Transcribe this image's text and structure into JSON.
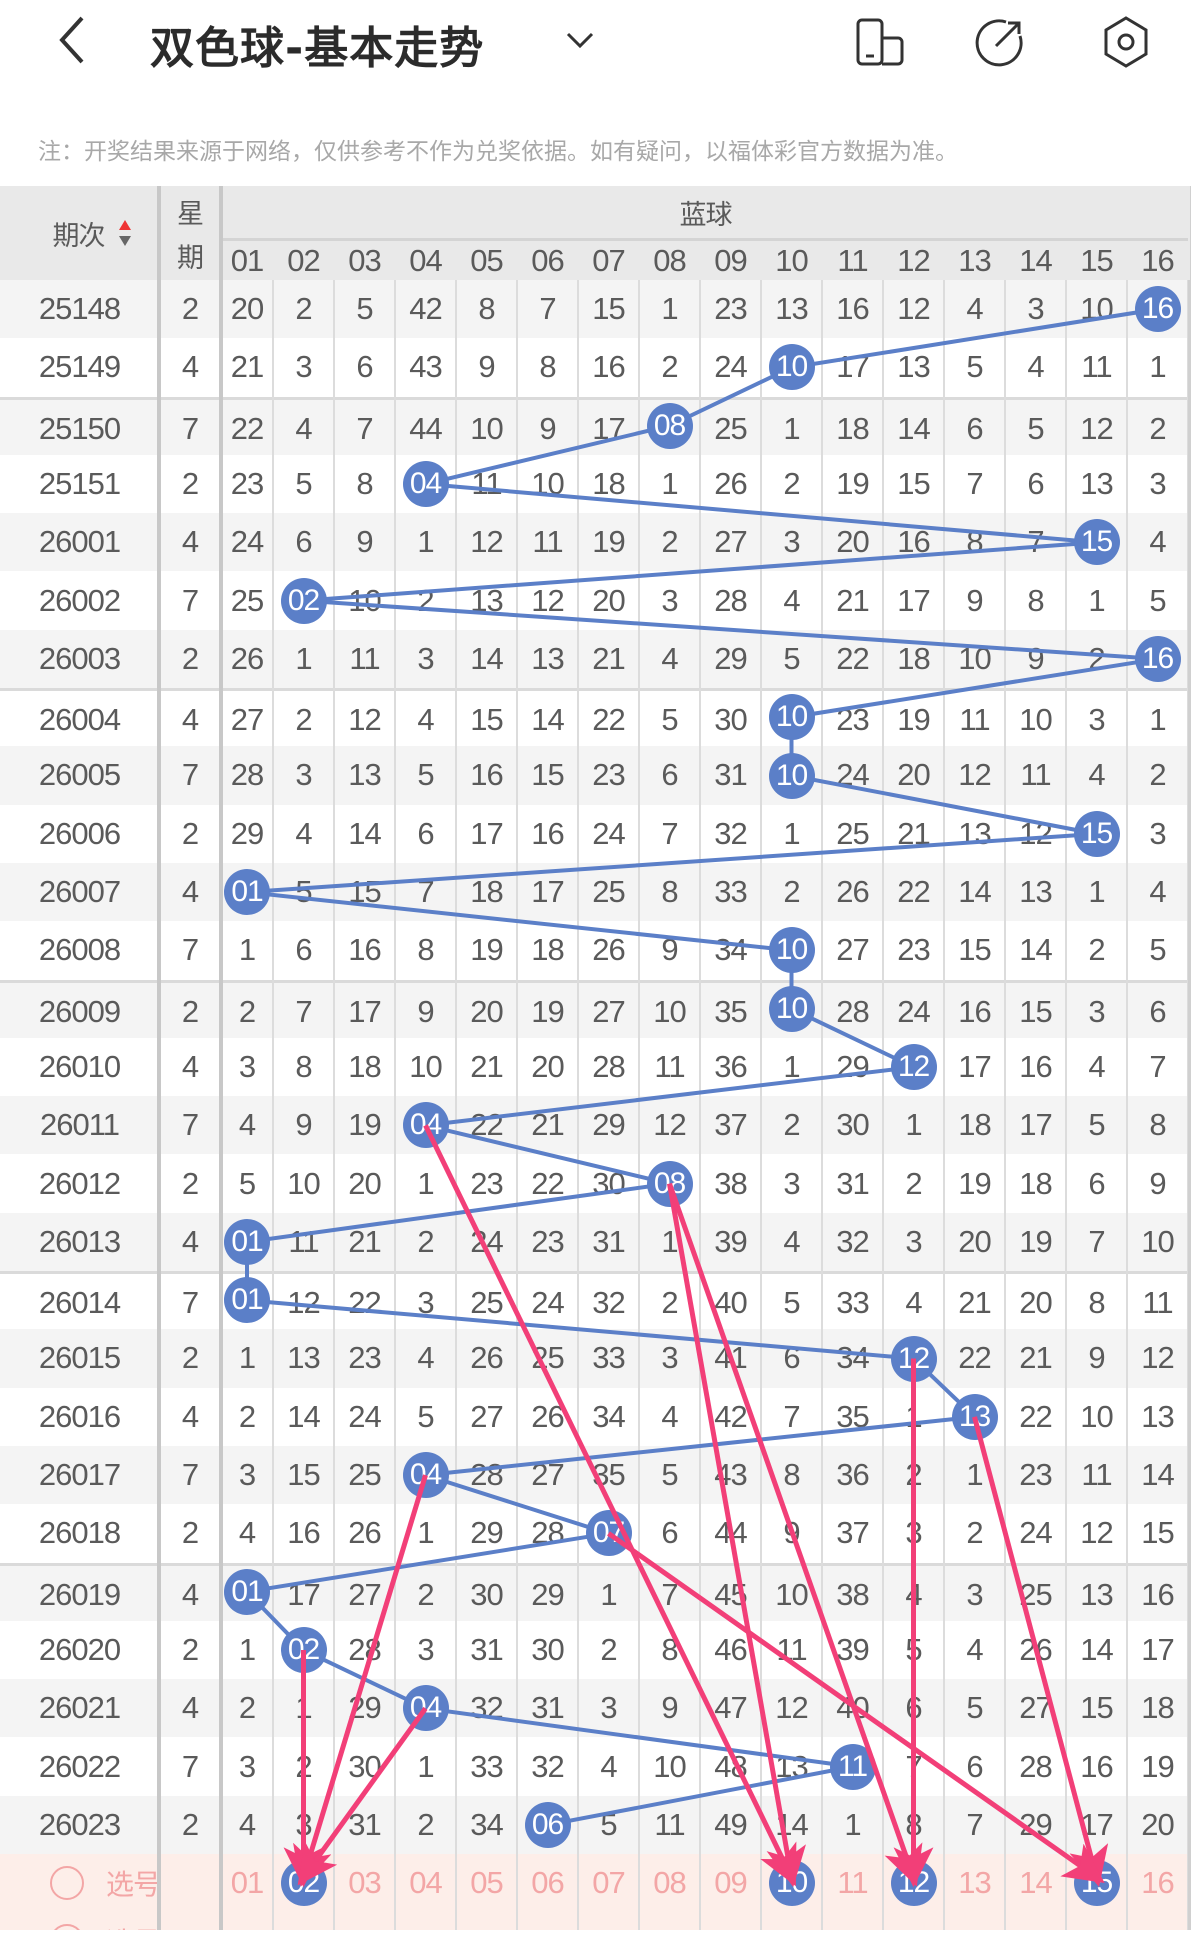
{
  "header": {
    "title": "双色球-基本走势",
    "icons": [
      "back-chevron-icon",
      "dropdown-chevron-icon",
      "screen-rotate-icon",
      "share-icon",
      "settings-icon"
    ]
  },
  "note": "注：开奖结果来源于网络，仅供参考不作为兑奖依据。如有疑问，以福体彩官方数据为准。",
  "table": {
    "col_issue": "期次",
    "col_week_1": "星",
    "col_week_2": "期",
    "blue_label": "蓝球",
    "numbers": [
      "01",
      "02",
      "03",
      "04",
      "05",
      "06",
      "07",
      "08",
      "09",
      "10",
      "11",
      "12",
      "13",
      "14",
      "15",
      "16"
    ],
    "rows": [
      {
        "issue": "25148",
        "week": "2",
        "win": "16",
        "values": [
          "20",
          "2",
          "5",
          "42",
          "8",
          "7",
          "15",
          "1",
          "23",
          "13",
          "16",
          "12",
          "4",
          "3",
          "10",
          "16"
        ]
      },
      {
        "issue": "25149",
        "week": "4",
        "win": "10",
        "values": [
          "21",
          "3",
          "6",
          "43",
          "9",
          "8",
          "16",
          "2",
          "24",
          "10",
          "17",
          "13",
          "5",
          "4",
          "11",
          "1"
        ]
      },
      {
        "issue": "25150",
        "week": "7",
        "win": "08",
        "values": [
          "22",
          "4",
          "7",
          "44",
          "10",
          "9",
          "17",
          "08",
          "25",
          "1",
          "18",
          "14",
          "6",
          "5",
          "12",
          "2"
        ]
      },
      {
        "issue": "25151",
        "week": "2",
        "win": "04",
        "values": [
          "23",
          "5",
          "8",
          "04",
          "11",
          "10",
          "18",
          "1",
          "26",
          "2",
          "19",
          "15",
          "7",
          "6",
          "13",
          "3"
        ]
      },
      {
        "issue": "26001",
        "week": "4",
        "win": "15",
        "values": [
          "24",
          "6",
          "9",
          "1",
          "12",
          "11",
          "19",
          "2",
          "27",
          "3",
          "20",
          "16",
          "8",
          "7",
          "15",
          "4"
        ]
      },
      {
        "issue": "26002",
        "week": "7",
        "win": "02",
        "values": [
          "25",
          "02",
          "10",
          "2",
          "13",
          "12",
          "20",
          "3",
          "28",
          "4",
          "21",
          "17",
          "9",
          "8",
          "1",
          "5"
        ]
      },
      {
        "issue": "26003",
        "week": "2",
        "win": "16",
        "values": [
          "26",
          "1",
          "11",
          "3",
          "14",
          "13",
          "21",
          "4",
          "29",
          "5",
          "22",
          "18",
          "10",
          "9",
          "2",
          "16"
        ]
      },
      {
        "issue": "26004",
        "week": "4",
        "win": "10",
        "values": [
          "27",
          "2",
          "12",
          "4",
          "15",
          "14",
          "22",
          "5",
          "30",
          "10",
          "23",
          "19",
          "11",
          "10",
          "3",
          "1"
        ]
      },
      {
        "issue": "26005",
        "week": "7",
        "win": "10",
        "values": [
          "28",
          "3",
          "13",
          "5",
          "16",
          "15",
          "23",
          "6",
          "31",
          "10",
          "24",
          "20",
          "12",
          "11",
          "4",
          "2"
        ]
      },
      {
        "issue": "26006",
        "week": "2",
        "win": "15",
        "values": [
          "29",
          "4",
          "14",
          "6",
          "17",
          "16",
          "24",
          "7",
          "32",
          "1",
          "25",
          "21",
          "13",
          "12",
          "15",
          "3"
        ]
      },
      {
        "issue": "26007",
        "week": "4",
        "win": "01",
        "values": [
          "01",
          "5",
          "15",
          "7",
          "18",
          "17",
          "25",
          "8",
          "33",
          "2",
          "26",
          "22",
          "14",
          "13",
          "1",
          "4"
        ]
      },
      {
        "issue": "26008",
        "week": "7",
        "win": "10",
        "values": [
          "1",
          "6",
          "16",
          "8",
          "19",
          "18",
          "26",
          "9",
          "34",
          "10",
          "27",
          "23",
          "15",
          "14",
          "2",
          "5"
        ]
      },
      {
        "issue": "26009",
        "week": "2",
        "win": "10",
        "values": [
          "2",
          "7",
          "17",
          "9",
          "20",
          "19",
          "27",
          "10",
          "35",
          "10",
          "28",
          "24",
          "16",
          "15",
          "3",
          "6"
        ]
      },
      {
        "issue": "26010",
        "week": "4",
        "win": "12",
        "values": [
          "3",
          "8",
          "18",
          "10",
          "21",
          "20",
          "28",
          "11",
          "36",
          "1",
          "29",
          "12",
          "17",
          "16",
          "4",
          "7"
        ]
      },
      {
        "issue": "26011",
        "week": "7",
        "win": "04",
        "values": [
          "4",
          "9",
          "19",
          "04",
          "22",
          "21",
          "29",
          "12",
          "37",
          "2",
          "30",
          "1",
          "18",
          "17",
          "5",
          "8"
        ]
      },
      {
        "issue": "26012",
        "week": "2",
        "win": "08",
        "values": [
          "5",
          "10",
          "20",
          "1",
          "23",
          "22",
          "30",
          "08",
          "38",
          "3",
          "31",
          "2",
          "19",
          "18",
          "6",
          "9"
        ]
      },
      {
        "issue": "26013",
        "week": "4",
        "win": "01",
        "values": [
          "01",
          "11",
          "21",
          "2",
          "24",
          "23",
          "31",
          "1",
          "39",
          "4",
          "32",
          "3",
          "20",
          "19",
          "7",
          "10"
        ]
      },
      {
        "issue": "26014",
        "week": "7",
        "win": "01",
        "values": [
          "01",
          "12",
          "22",
          "3",
          "25",
          "24",
          "32",
          "2",
          "40",
          "5",
          "33",
          "4",
          "21",
          "20",
          "8",
          "11"
        ]
      },
      {
        "issue": "26015",
        "week": "2",
        "win": "12",
        "values": [
          "1",
          "13",
          "23",
          "4",
          "26",
          "25",
          "33",
          "3",
          "41",
          "6",
          "34",
          "12",
          "22",
          "21",
          "9",
          "12"
        ]
      },
      {
        "issue": "26016",
        "week": "4",
        "win": "13",
        "values": [
          "2",
          "14",
          "24",
          "5",
          "27",
          "26",
          "34",
          "4",
          "42",
          "7",
          "35",
          "1",
          "13",
          "22",
          "10",
          "13"
        ]
      },
      {
        "issue": "26017",
        "week": "7",
        "win": "04",
        "values": [
          "3",
          "15",
          "25",
          "04",
          "28",
          "27",
          "35",
          "5",
          "43",
          "8",
          "36",
          "2",
          "1",
          "23",
          "11",
          "14"
        ]
      },
      {
        "issue": "26018",
        "week": "2",
        "win": "07",
        "values": [
          "4",
          "16",
          "26",
          "1",
          "29",
          "28",
          "07",
          "6",
          "44",
          "9",
          "37",
          "3",
          "2",
          "24",
          "12",
          "15"
        ]
      },
      {
        "issue": "26019",
        "week": "4",
        "win": "01",
        "values": [
          "01",
          "17",
          "27",
          "2",
          "30",
          "29",
          "1",
          "7",
          "45",
          "10",
          "38",
          "4",
          "3",
          "25",
          "13",
          "16"
        ]
      },
      {
        "issue": "26020",
        "week": "2",
        "win": "02",
        "values": [
          "1",
          "02",
          "28",
          "3",
          "31",
          "30",
          "2",
          "8",
          "46",
          "11",
          "39",
          "5",
          "4",
          "26",
          "14",
          "17"
        ]
      },
      {
        "issue": "26021",
        "week": "4",
        "win": "04",
        "values": [
          "2",
          "1",
          "29",
          "04",
          "32",
          "31",
          "3",
          "9",
          "47",
          "12",
          "40",
          "6",
          "5",
          "27",
          "15",
          "18"
        ]
      },
      {
        "issue": "26022",
        "week": "7",
        "win": "11",
        "values": [
          "3",
          "2",
          "30",
          "1",
          "33",
          "32",
          "4",
          "10",
          "48",
          "13",
          "11",
          "7",
          "6",
          "28",
          "16",
          "19"
        ]
      },
      {
        "issue": "26023",
        "week": "2",
        "win": "06",
        "values": [
          "4",
          "3",
          "31",
          "2",
          "34",
          "06",
          "5",
          "11",
          "49",
          "14",
          "1",
          "8",
          "7",
          "29",
          "17",
          "20"
        ]
      }
    ]
  },
  "select": {
    "label": "选号",
    "selected": [
      "02",
      "10",
      "12",
      "15"
    ]
  },
  "arrows": [
    {
      "from_issue": "26011",
      "from": "04",
      "to": "10"
    },
    {
      "from_issue": "26012",
      "from": "08",
      "to": "10"
    },
    {
      "from_issue": "26012",
      "from": "08",
      "to": "12"
    },
    {
      "from_issue": "26015",
      "from": "12",
      "to": "12"
    },
    {
      "from_issue": "26016",
      "from": "13",
      "to": "15"
    },
    {
      "from_issue": "26018",
      "from": "07",
      "to": "15"
    },
    {
      "from_issue": "26017",
      "from": "04",
      "to": "02"
    },
    {
      "from_issue": "26020",
      "from": "02",
      "to": "02"
    },
    {
      "from_issue": "26021",
      "from": "04",
      "to": "02"
    }
  ],
  "colors": {
    "ball": "#5b7fc8",
    "trend_line": "#5b7fc8",
    "arrow": "#f23f78",
    "select_bg": "#fdeee9",
    "select_text": "#f3a6a6",
    "header_bg": "#e9e9e9"
  }
}
